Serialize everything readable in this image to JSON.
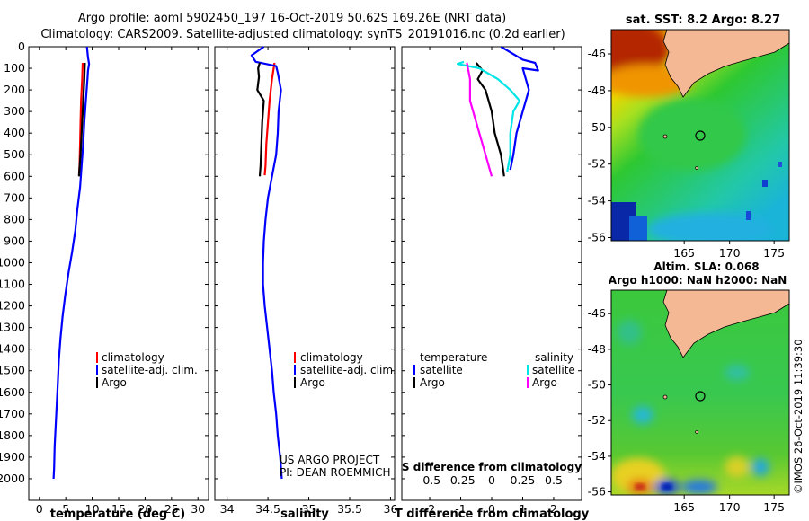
{
  "title": {
    "line1": "Argo profile: aoml 5902450_197 16-Oct-2019 50.62S 169.26E (NRT data)",
    "line2": "Climatology: CARS2009. Satellite-adjusted climatology: synTS_20191016.nc (0.2d earlier)"
  },
  "colors": {
    "climatology": "#ff0000",
    "satellite": "#0000ff",
    "argo": "#000000",
    "sat_salinity": "#00e5e5",
    "argo_salinity": "#ff00ff"
  },
  "chart_data": [
    {
      "type": "line",
      "name": "temperature",
      "xlabel": "temperature (deg C)",
      "ylabel": "",
      "xlim": [
        -2,
        32
      ],
      "ylim": [
        2100,
        0
      ],
      "xticks": [
        0,
        5,
        10,
        15,
        20,
        25,
        30
      ],
      "yticks": [
        0,
        100,
        200,
        300,
        400,
        500,
        600,
        700,
        800,
        900,
        1000,
        1100,
        1200,
        1300,
        1400,
        1500,
        1600,
        1700,
        1800,
        1900,
        2000
      ],
      "series": [
        {
          "name": "climatology",
          "color": "#ff0000",
          "points": [
            [
              8.2,
              75
            ],
            [
              8.1,
              150
            ],
            [
              7.9,
              250
            ],
            [
              7.8,
              350
            ],
            [
              7.7,
              450
            ],
            [
              7.6,
              550
            ],
            [
              7.5,
              595
            ]
          ]
        },
        {
          "name": "satellite-adj. clim.",
          "color": "#0000ff",
          "points": [
            [
              9.0,
              0
            ],
            [
              9.2,
              50
            ],
            [
              9.4,
              80
            ],
            [
              9.2,
              110
            ],
            [
              9.1,
              150
            ],
            [
              8.8,
              250
            ],
            [
              8.5,
              350
            ],
            [
              8.3,
              450
            ],
            [
              8.0,
              550
            ],
            [
              7.7,
              650
            ],
            [
              7.2,
              750
            ],
            [
              6.8,
              850
            ],
            [
              6.2,
              950
            ],
            [
              5.5,
              1050
            ],
            [
              4.9,
              1150
            ],
            [
              4.4,
              1250
            ],
            [
              4.0,
              1350
            ],
            [
              3.7,
              1450
            ],
            [
              3.5,
              1550
            ],
            [
              3.3,
              1650
            ],
            [
              3.1,
              1750
            ],
            [
              2.9,
              1850
            ],
            [
              2.8,
              1950
            ],
            [
              2.7,
              2000
            ]
          ]
        },
        {
          "name": "Argo",
          "color": "#000000",
          "points": [
            [
              8.6,
              75
            ],
            [
              8.5,
              150
            ],
            [
              8.4,
              200
            ],
            [
              8.2,
              300
            ],
            [
              8.0,
              400
            ],
            [
              7.8,
              500
            ],
            [
              7.6,
              560
            ],
            [
              7.5,
              600
            ]
          ]
        }
      ],
      "legend": [
        "climatology",
        "satellite-adj. clim.",
        "Argo"
      ]
    },
    {
      "type": "line",
      "name": "salinity",
      "xlabel": "salinity",
      "xlim": [
        33.85,
        36.05
      ],
      "ylim": [
        2100,
        0
      ],
      "xticks": [
        34,
        34.5,
        35,
        35.5,
        36
      ],
      "series": [
        {
          "name": "climatology",
          "color": "#ff0000",
          "points": [
            [
              34.58,
              75
            ],
            [
              34.55,
              150
            ],
            [
              34.52,
              250
            ],
            [
              34.5,
              350
            ],
            [
              34.48,
              450
            ],
            [
              34.47,
              550
            ],
            [
              34.46,
              595
            ]
          ]
        },
        {
          "name": "satellite-adj. clim.",
          "color": "#0000ff",
          "points": [
            [
              34.45,
              0
            ],
            [
              34.3,
              40
            ],
            [
              34.35,
              70
            ],
            [
              34.6,
              90
            ],
            [
              34.62,
              120
            ],
            [
              34.66,
              200
            ],
            [
              34.63,
              300
            ],
            [
              34.62,
              400
            ],
            [
              34.6,
              500
            ],
            [
              34.55,
              600
            ],
            [
              34.5,
              700
            ],
            [
              34.47,
              800
            ],
            [
              34.45,
              900
            ],
            [
              34.44,
              1000
            ],
            [
              34.44,
              1100
            ],
            [
              34.46,
              1200
            ],
            [
              34.49,
              1300
            ],
            [
              34.52,
              1400
            ],
            [
              34.55,
              1500
            ],
            [
              34.57,
              1600
            ],
            [
              34.6,
              1700
            ],
            [
              34.62,
              1800
            ],
            [
              34.65,
              1900
            ],
            [
              34.67,
              2000
            ]
          ]
        },
        {
          "name": "Argo",
          "color": "#000000",
          "points": [
            [
              34.4,
              75
            ],
            [
              34.38,
              100
            ],
            [
              34.39,
              140
            ],
            [
              34.37,
              200
            ],
            [
              34.45,
              250
            ],
            [
              34.43,
              350
            ],
            [
              34.42,
              450
            ],
            [
              34.41,
              550
            ],
            [
              34.4,
              600
            ]
          ]
        }
      ],
      "legend": [
        "climatology",
        "satellite-adj. clim.",
        "Argo"
      ],
      "annotations": [
        "US ARGO PROJECT",
        "PI: DEAN ROEMMICH"
      ]
    },
    {
      "type": "line",
      "name": "differences",
      "xlabel": "T difference from climatology",
      "xlabel2": "S difference from climatology",
      "xlim": [
        -2.9,
        2.9
      ],
      "ylim": [
        2100,
        0
      ],
      "xticks": [
        -2,
        -1,
        0,
        1,
        2
      ],
      "xticks2": [
        "-0.5",
        "-0.25",
        "0",
        "0.25",
        "0.5"
      ],
      "series": [
        {
          "name": "temperature satellite",
          "color": "#0000ff",
          "points": [
            [
              0.3,
              0
            ],
            [
              1.0,
              60
            ],
            [
              1.4,
              75
            ],
            [
              1.5,
              110
            ],
            [
              1.0,
              100
            ],
            [
              1.2,
              200
            ],
            [
              1.0,
              300
            ],
            [
              0.8,
              400
            ],
            [
              0.7,
              500
            ],
            [
              0.6,
              570
            ]
          ]
        },
        {
          "name": "temperature Argo",
          "color": "#000000",
          "points": [
            [
              -0.5,
              75
            ],
            [
              -0.3,
              110
            ],
            [
              -0.45,
              150
            ],
            [
              -0.2,
              200
            ],
            [
              0.0,
              300
            ],
            [
              0.1,
              400
            ],
            [
              0.3,
              500
            ],
            [
              0.4,
              600
            ]
          ]
        },
        {
          "name": "salinity satellite",
          "color": "#00e5e5",
          "points": [
            [
              -0.9,
              70
            ],
            [
              -1.1,
              80
            ],
            [
              -0.4,
              100
            ],
            [
              0.2,
              150
            ],
            [
              0.6,
              200
            ],
            [
              0.9,
              250
            ],
            [
              0.7,
              300
            ],
            [
              0.6,
              400
            ],
            [
              0.6,
              500
            ],
            [
              0.5,
              580
            ]
          ]
        },
        {
          "name": "salinity Argo",
          "color": "#ff00ff",
          "points": [
            [
              -0.8,
              75
            ],
            [
              -0.7,
              150
            ],
            [
              -0.7,
              250
            ],
            [
              -0.5,
              350
            ],
            [
              -0.3,
              450
            ],
            [
              -0.1,
              550
            ],
            [
              0.0,
              600
            ]
          ]
        }
      ],
      "legend_titles": [
        "temperature",
        "salinity"
      ],
      "legend": [
        "satellite",
        "Argo",
        "satellite",
        "Argo"
      ]
    },
    {
      "type": "heatmap",
      "name": "sst_map",
      "title": "sat. SST: 8.2 Argo: 8.27",
      "xticks": [
        "165",
        "170",
        "175"
      ],
      "yticks": [
        "-46",
        "-48",
        "-50",
        "-52",
        "-54",
        "-56"
      ],
      "float_position": [
        169.26,
        -50.62
      ]
    },
    {
      "type": "heatmap",
      "name": "sla_map",
      "title": "Altim. SLA: 0.068",
      "subtitle": "Argo h1000: NaN h2000: NaN",
      "xticks": [
        "165",
        "170",
        "175"
      ],
      "yticks": [
        "-46",
        "-48",
        "-50",
        "-52",
        "-54",
        "-56"
      ],
      "float_position": [
        169.26,
        -50.62
      ]
    }
  ],
  "footer": {
    "imos": "©IMOS 26-Oct-2019 11:39:30"
  }
}
